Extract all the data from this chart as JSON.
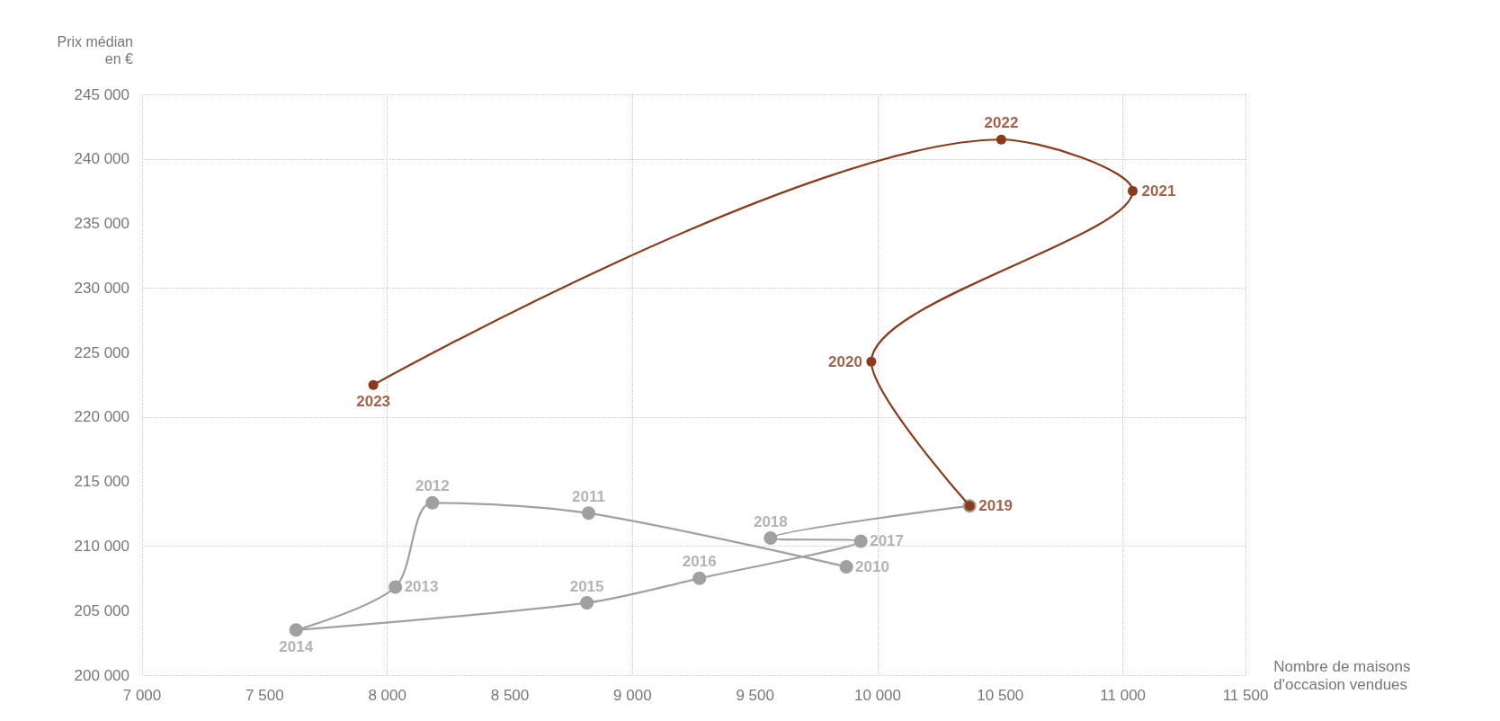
{
  "chart_data": {
    "type": "line",
    "xlabel": "Nombre de maisons\nd'occasion vendues",
    "ylabel": "Prix médian\nen €",
    "xlim": [
      7000,
      11500
    ],
    "xticks": [
      7000,
      7500,
      8000,
      8500,
      9000,
      9500,
      10000,
      10500,
      11000,
      11500
    ],
    "ylim": [
      200000,
      245000
    ],
    "yticks": [
      200000,
      205000,
      210000,
      215000,
      220000,
      225000,
      230000,
      235000,
      240000,
      245000
    ],
    "grid": true,
    "marker": "circle",
    "series": [
      {
        "color": "#a0a0a0",
        "x": [
          9872,
          8821,
          8184,
          8033,
          7628,
          8814,
          9273,
          9931,
          9563,
          10375
        ],
        "values": [
          208400,
          212550,
          213350,
          206830,
          203500,
          205600,
          207500,
          210380,
          210620,
          213120
        ]
      },
      {
        "color": "#8b3a1a",
        "x": [
          10375,
          9974,
          11040,
          10504,
          7943
        ],
        "values": [
          213120,
          224290,
          237520,
          241500,
          222490
        ]
      }
    ],
    "annotations": [
      {
        "text": "2010",
        "x": 9872,
        "y": 208400
      },
      {
        "text": "2011",
        "x": 8821,
        "y": 212550
      },
      {
        "text": "2012",
        "x": 8184,
        "y": 213350
      },
      {
        "text": "2013",
        "x": 8033,
        "y": 206830
      },
      {
        "text": "2014",
        "x": 7628,
        "y": 203500
      },
      {
        "text": "2015",
        "x": 8814,
        "y": 205600
      },
      {
        "text": "2016",
        "x": 9273,
        "y": 207500
      },
      {
        "text": "2017",
        "x": 9931,
        "y": 210380
      },
      {
        "text": "2018",
        "x": 9563,
        "y": 210620
      },
      {
        "text": "2019",
        "x": 10375,
        "y": 213120
      },
      {
        "text": "2020",
        "x": 9974,
        "y": 224290
      },
      {
        "text": "2021",
        "x": 11040,
        "y": 237520
      },
      {
        "text": "2022",
        "x": 10504,
        "y": 241500
      },
      {
        "text": "2023",
        "x": 7943,
        "y": 222490
      }
    ]
  }
}
